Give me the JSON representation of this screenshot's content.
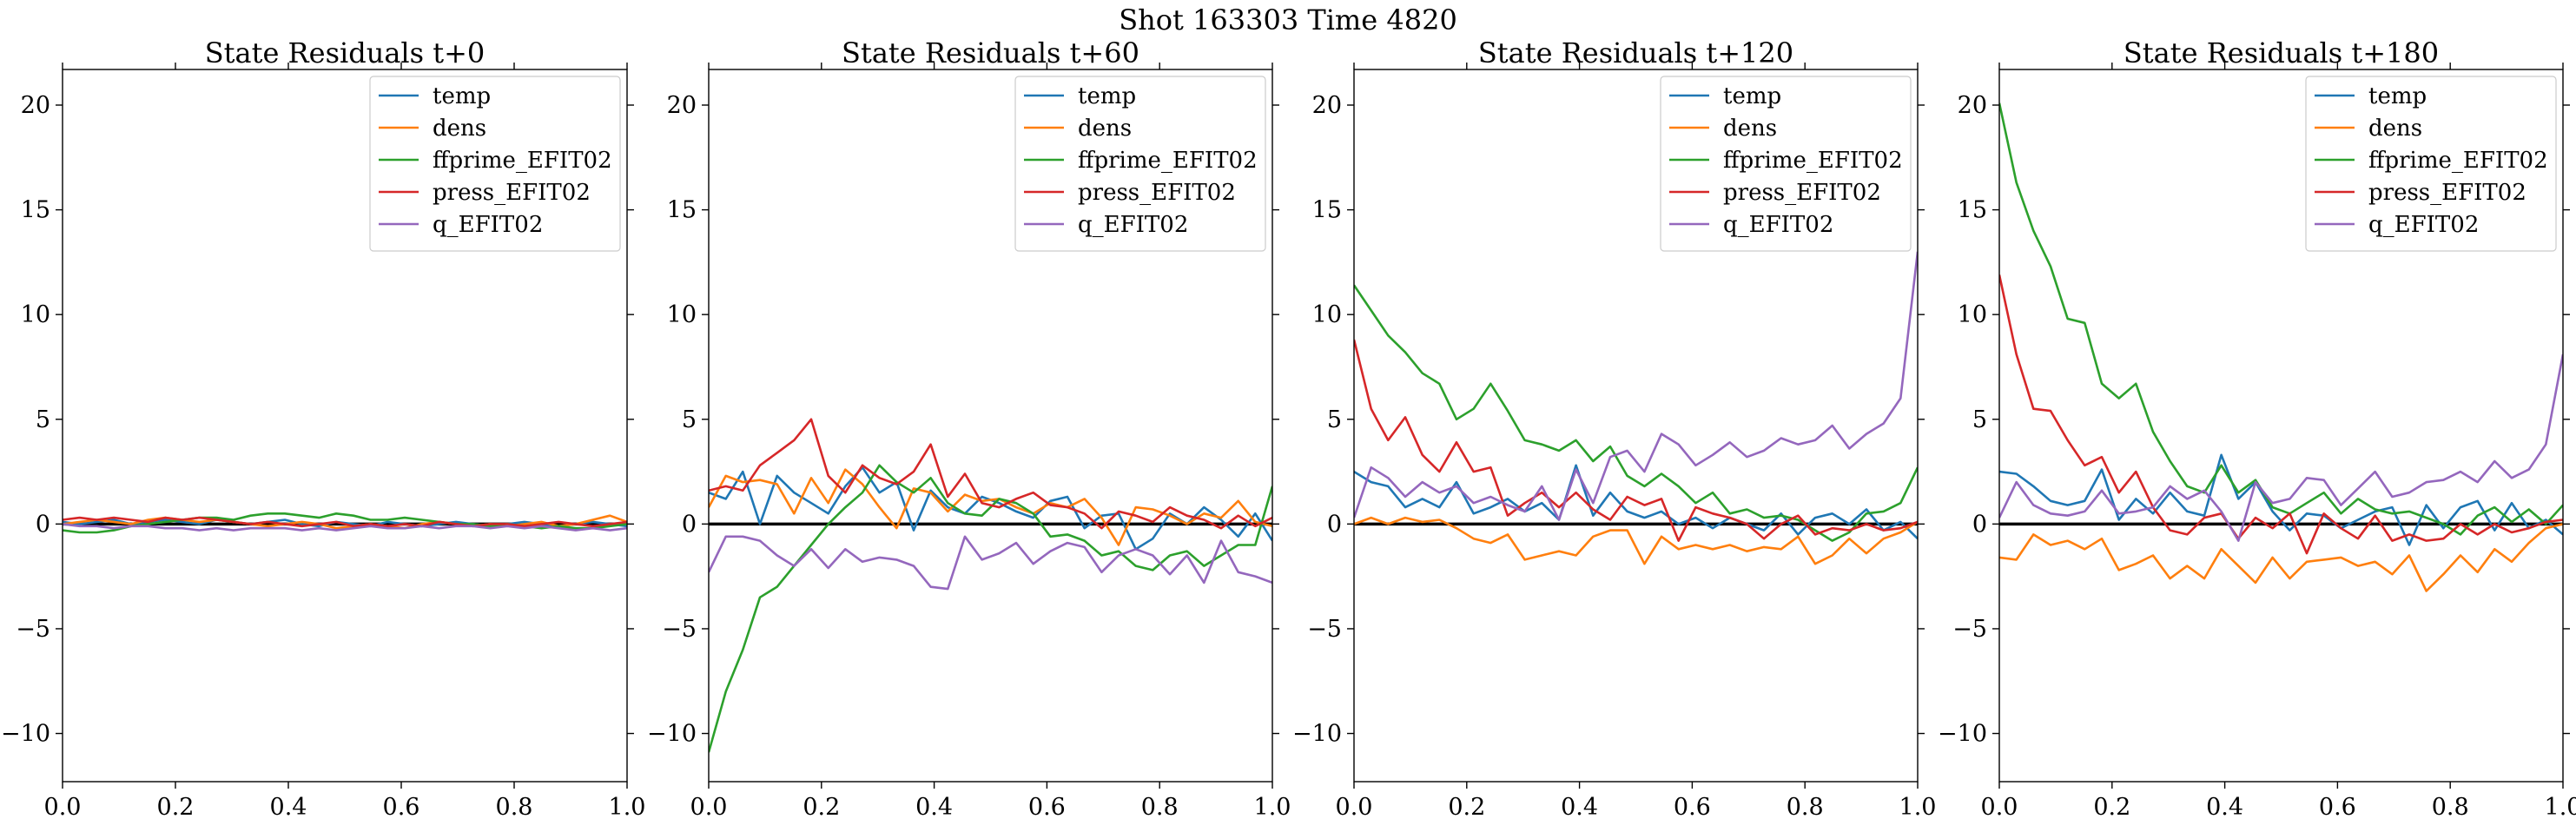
{
  "figure": {
    "suptitle": "Shot 163303   Time 4820"
  },
  "colors": {
    "temp": "#1f77b4",
    "dens": "#ff7f0e",
    "ffprime_EFIT02": "#2ca02c",
    "press_EFIT02": "#d62728",
    "q_EFIT02": "#9467bd",
    "zero_line": "#000000"
  },
  "chart_data": [
    {
      "type": "line",
      "title": "State Residuals t+0",
      "xlim": [
        0.0,
        1.0
      ],
      "ylim": [
        -12.3,
        21.7
      ],
      "xticks": [
        "0.0",
        "0.2",
        "0.4",
        "0.6",
        "0.8",
        "1.0"
      ],
      "yticks": [
        "−10",
        "−5",
        "0",
        "5",
        "10",
        "15",
        "20"
      ],
      "grid": false,
      "legend_position": "upper right",
      "x": [
        0.0,
        0.0303,
        0.0606,
        0.0909,
        0.1212,
        0.1515,
        0.1818,
        0.2121,
        0.2424,
        0.2727,
        0.303,
        0.3333,
        0.3636,
        0.3939,
        0.4242,
        0.4545,
        0.4848,
        0.5152,
        0.5455,
        0.5758,
        0.6061,
        0.6364,
        0.6667,
        0.697,
        0.7273,
        0.7576,
        0.7879,
        0.8182,
        0.8485,
        0.8788,
        0.9091,
        0.9394,
        0.9697,
        1.0
      ],
      "series": [
        {
          "name": "temp",
          "values": [
            0.1,
            0.0,
            0.1,
            0.2,
            0.0,
            0.1,
            0.2,
            0.1,
            0.0,
            0.2,
            0.1,
            0.0,
            0.1,
            0.2,
            0.0,
            -0.1,
            0.1,
            0.0,
            -0.1,
            0.1,
            0.0,
            -0.1,
            0.0,
            0.1,
            0.0,
            -0.1,
            0.0,
            0.1,
            0.0,
            -0.1,
            0.0,
            0.1,
            0.0,
            -0.1
          ]
        },
        {
          "name": "dens",
          "values": [
            0.0,
            0.1,
            0.2,
            0.1,
            0.0,
            0.2,
            0.3,
            0.2,
            0.1,
            0.2,
            0.1,
            0.0,
            -0.1,
            0.0,
            0.1,
            0.0,
            -0.2,
            -0.1,
            0.0,
            -0.1,
            -0.2,
            0.0,
            0.1,
            0.0,
            -0.1,
            0.0,
            -0.1,
            0.0,
            0.1,
            -0.1,
            0.0,
            0.2,
            0.4,
            0.1
          ]
        },
        {
          "name": "ffprime_EFIT02",
          "values": [
            -0.3,
            -0.4,
            -0.4,
            -0.3,
            -0.1,
            0.0,
            0.1,
            0.2,
            0.3,
            0.3,
            0.2,
            0.4,
            0.5,
            0.5,
            0.4,
            0.3,
            0.5,
            0.4,
            0.2,
            0.2,
            0.3,
            0.2,
            0.1,
            0.0,
            0.0,
            -0.1,
            0.0,
            -0.1,
            -0.2,
            -0.1,
            -0.2,
            -0.2,
            -0.1,
            0.0
          ]
        },
        {
          "name": "press_EFIT02",
          "values": [
            0.2,
            0.3,
            0.2,
            0.3,
            0.2,
            0.1,
            0.3,
            0.2,
            0.3,
            0.2,
            0.1,
            0.0,
            0.1,
            0.0,
            -0.1,
            0.0,
            0.1,
            -0.1,
            0.0,
            -0.1,
            0.0,
            -0.1,
            0.1,
            0.0,
            -0.1,
            0.0,
            0.0,
            -0.1,
            0.0,
            0.1,
            0.0,
            -0.1,
            0.0,
            0.1
          ]
        },
        {
          "name": "q_EFIT02",
          "values": [
            0.0,
            -0.1,
            -0.1,
            -0.2,
            -0.1,
            -0.1,
            -0.2,
            -0.2,
            -0.3,
            -0.2,
            -0.3,
            -0.2,
            -0.2,
            -0.2,
            -0.3,
            -0.2,
            -0.3,
            -0.2,
            -0.1,
            -0.2,
            -0.2,
            -0.1,
            -0.2,
            -0.1,
            -0.1,
            -0.2,
            -0.1,
            -0.2,
            -0.1,
            -0.2,
            -0.3,
            -0.2,
            -0.3,
            -0.2
          ]
        }
      ]
    },
    {
      "type": "line",
      "title": "State Residuals t+60",
      "xlim": [
        0.0,
        1.0
      ],
      "ylim": [
        -12.3,
        21.7
      ],
      "xticks": [
        "0.0",
        "0.2",
        "0.4",
        "0.6",
        "0.8",
        "1.0"
      ],
      "yticks": [
        "−10",
        "−5",
        "0",
        "5",
        "10",
        "15",
        "20"
      ],
      "grid": false,
      "legend_position": "upper right",
      "x": [
        0.0,
        0.0303,
        0.0606,
        0.0909,
        0.1212,
        0.1515,
        0.1818,
        0.2121,
        0.2424,
        0.2727,
        0.303,
        0.3333,
        0.3636,
        0.3939,
        0.4242,
        0.4545,
        0.4848,
        0.5152,
        0.5455,
        0.5758,
        0.6061,
        0.6364,
        0.6667,
        0.697,
        0.7273,
        0.7576,
        0.7879,
        0.8182,
        0.8485,
        0.8788,
        0.9091,
        0.9394,
        0.9697,
        1.0
      ],
      "series": [
        {
          "name": "temp",
          "values": [
            1.5,
            1.2,
            2.5,
            0.0,
            2.3,
            1.5,
            1.0,
            0.5,
            1.8,
            2.7,
            1.5,
            2.0,
            -0.3,
            1.6,
            0.8,
            0.5,
            1.3,
            1.0,
            0.6,
            0.3,
            1.1,
            1.3,
            -0.2,
            0.4,
            0.5,
            -1.2,
            -0.7,
            0.5,
            0.0,
            0.8,
            0.2,
            -0.6,
            0.5,
            -0.8
          ]
        },
        {
          "name": "dens",
          "values": [
            0.8,
            2.3,
            2.0,
            2.1,
            1.9,
            0.5,
            2.2,
            1.0,
            2.6,
            1.9,
            0.8,
            -0.2,
            1.7,
            1.5,
            0.6,
            1.4,
            1.1,
            1.2,
            0.8,
            0.5,
            1.0,
            0.8,
            1.2,
            0.3,
            -1.0,
            0.8,
            0.7,
            0.4,
            0.0,
            0.5,
            0.3,
            1.1,
            0.1,
            -0.1
          ]
        },
        {
          "name": "ffprime_EFIT02",
          "values": [
            -10.9,
            -8.0,
            -6.0,
            -3.5,
            -3.0,
            -2.0,
            -1.0,
            0.0,
            0.8,
            1.5,
            2.8,
            2.0,
            1.5,
            2.2,
            1.0,
            0.5,
            0.4,
            1.2,
            1.0,
            0.5,
            -0.6,
            -0.5,
            -0.8,
            -1.5,
            -1.3,
            -2.0,
            -2.2,
            -1.5,
            -1.3,
            -2.0,
            -1.5,
            -1.0,
            -1.0,
            1.8
          ]
        },
        {
          "name": "press_EFIT02",
          "values": [
            1.6,
            1.8,
            1.6,
            2.8,
            3.4,
            4.0,
            5.0,
            2.3,
            1.5,
            2.8,
            2.2,
            1.9,
            2.5,
            3.8,
            1.3,
            2.4,
            1.0,
            0.8,
            1.2,
            1.5,
            0.9,
            0.8,
            0.5,
            -0.2,
            0.6,
            0.4,
            0.1,
            0.8,
            0.4,
            0.2,
            -0.2,
            0.4,
            -0.1,
            0.3
          ]
        },
        {
          "name": "q_EFIT02",
          "values": [
            -2.3,
            -0.6,
            -0.6,
            -0.8,
            -1.5,
            -2.0,
            -1.2,
            -2.1,
            -1.2,
            -1.8,
            -1.6,
            -1.7,
            -2.0,
            -3.0,
            -3.1,
            -0.6,
            -1.7,
            -1.4,
            -0.9,
            -1.9,
            -1.3,
            -0.9,
            -1.1,
            -2.3,
            -1.5,
            -1.2,
            -1.5,
            -2.4,
            -1.5,
            -2.8,
            -0.8,
            -2.3,
            -2.5,
            -2.8
          ]
        }
      ]
    },
    {
      "type": "line",
      "title": "State Residuals t+120",
      "xlim": [
        0.0,
        1.0
      ],
      "ylim": [
        -12.3,
        21.7
      ],
      "xticks": [
        "0.0",
        "0.2",
        "0.4",
        "0.6",
        "0.8",
        "1.0"
      ],
      "yticks": [
        "−10",
        "−5",
        "0",
        "5",
        "10",
        "15",
        "20"
      ],
      "grid": false,
      "legend_position": "upper right",
      "x": [
        0.0,
        0.0303,
        0.0606,
        0.0909,
        0.1212,
        0.1515,
        0.1818,
        0.2121,
        0.2424,
        0.2727,
        0.303,
        0.3333,
        0.3636,
        0.3939,
        0.4242,
        0.4545,
        0.4848,
        0.5152,
        0.5455,
        0.5758,
        0.6061,
        0.6364,
        0.6667,
        0.697,
        0.7273,
        0.7576,
        0.7879,
        0.8182,
        0.8485,
        0.8788,
        0.9091,
        0.9394,
        0.9697,
        1.0
      ],
      "series": [
        {
          "name": "temp",
          "values": [
            2.5,
            2.0,
            1.8,
            0.8,
            1.2,
            0.8,
            2.0,
            0.5,
            0.8,
            1.2,
            0.6,
            1.0,
            0.2,
            2.8,
            0.4,
            1.5,
            0.6,
            0.3,
            0.6,
            0.0,
            0.3,
            -0.2,
            0.3,
            0.0,
            -0.3,
            0.5,
            -0.5,
            0.3,
            0.5,
            0.0,
            0.7,
            -0.3,
            0.1,
            -0.7
          ]
        },
        {
          "name": "dens",
          "values": [
            0.0,
            0.3,
            0.0,
            0.3,
            0.1,
            0.2,
            -0.2,
            -0.7,
            -0.9,
            -0.5,
            -1.7,
            -1.5,
            -1.3,
            -1.5,
            -0.6,
            -0.3,
            -0.3,
            -1.9,
            -0.6,
            -1.2,
            -1.0,
            -1.2,
            -1.0,
            -1.3,
            -1.1,
            -1.2,
            -0.6,
            -1.9,
            -1.5,
            -0.7,
            -1.4,
            -0.7,
            -0.4,
            0.1
          ]
        },
        {
          "name": "ffprime_EFIT02",
          "values": [
            11.4,
            10.2,
            9.0,
            8.2,
            7.2,
            6.7,
            5.0,
            5.5,
            6.7,
            5.4,
            4.0,
            3.8,
            3.5,
            4.0,
            3.0,
            3.7,
            2.3,
            1.8,
            2.4,
            1.8,
            1.0,
            1.5,
            0.5,
            0.7,
            0.3,
            0.4,
            0.2,
            -0.3,
            -0.8,
            -0.4,
            0.5,
            0.6,
            1.0,
            2.7
          ]
        },
        {
          "name": "press_EFIT02",
          "values": [
            8.8,
            5.5,
            4.0,
            5.1,
            3.3,
            2.5,
            3.9,
            2.5,
            2.7,
            0.4,
            1.0,
            1.5,
            0.8,
            1.5,
            0.7,
            0.2,
            1.3,
            0.9,
            1.2,
            -0.8,
            0.8,
            0.5,
            0.3,
            0.0,
            -0.7,
            0.0,
            0.4,
            -0.5,
            -0.2,
            -0.3,
            0.0,
            -0.3,
            -0.2,
            0.1
          ]
        },
        {
          "name": "q_EFIT02",
          "values": [
            0.3,
            2.7,
            2.2,
            1.3,
            2.0,
            1.5,
            1.8,
            1.0,
            1.3,
            0.9,
            0.6,
            1.8,
            0.2,
            2.6,
            1.0,
            3.2,
            3.5,
            2.5,
            4.3,
            3.8,
            2.8,
            3.3,
            3.9,
            3.2,
            3.5,
            4.1,
            3.8,
            4.0,
            4.7,
            3.6,
            4.3,
            4.8,
            6.0,
            13.0
          ]
        }
      ]
    },
    {
      "type": "line",
      "title": "State Residuals t+180",
      "xlim": [
        0.0,
        1.0
      ],
      "ylim": [
        -12.3,
        21.7
      ],
      "xticks": [
        "0.0",
        "0.2",
        "0.4",
        "0.6",
        "0.8",
        "1.0"
      ],
      "yticks": [
        "−10",
        "−5",
        "0",
        "5",
        "10",
        "15",
        "20"
      ],
      "grid": false,
      "legend_position": "upper right",
      "x": [
        0.0,
        0.0303,
        0.0606,
        0.0909,
        0.1212,
        0.1515,
        0.1818,
        0.2121,
        0.2424,
        0.2727,
        0.303,
        0.3333,
        0.3636,
        0.3939,
        0.4242,
        0.4545,
        0.4848,
        0.5152,
        0.5455,
        0.5758,
        0.6061,
        0.6364,
        0.6667,
        0.697,
        0.7273,
        0.7576,
        0.7879,
        0.8182,
        0.8485,
        0.8788,
        0.9091,
        0.9394,
        0.9697,
        1.0
      ],
      "series": [
        {
          "name": "temp",
          "values": [
            2.5,
            2.4,
            1.8,
            1.1,
            0.9,
            1.1,
            2.6,
            0.2,
            1.2,
            0.5,
            1.5,
            0.6,
            0.4,
            3.3,
            1.2,
            2.0,
            0.6,
            -0.3,
            0.5,
            0.4,
            -0.2,
            0.2,
            0.6,
            0.8,
            -1.0,
            0.9,
            -0.2,
            0.8,
            1.1,
            -0.3,
            1.0,
            -0.2,
            0.2,
            -0.5
          ]
        },
        {
          "name": "dens",
          "values": [
            -1.6,
            -1.7,
            -0.5,
            -1.0,
            -0.8,
            -1.2,
            -0.7,
            -2.2,
            -1.9,
            -1.5,
            -2.6,
            -2.0,
            -2.6,
            -1.2,
            -2.0,
            -2.8,
            -1.6,
            -2.6,
            -1.8,
            -1.7,
            -1.6,
            -2.0,
            -1.8,
            -2.4,
            -1.5,
            -3.2,
            -2.4,
            -1.5,
            -2.3,
            -1.2,
            -1.8,
            -0.9,
            -0.2,
            0.0
          ]
        },
        {
          "name": "ffprime_EFIT02",
          "values": [
            20.1,
            16.3,
            14.0,
            12.3,
            9.8,
            9.6,
            6.7,
            6.0,
            6.7,
            4.4,
            3.0,
            1.8,
            1.5,
            2.8,
            1.5,
            2.1,
            0.8,
            0.5,
            1.0,
            1.5,
            0.5,
            1.2,
            0.7,
            0.5,
            0.6,
            0.3,
            0.0,
            -0.5,
            0.4,
            0.8,
            0.1,
            0.7,
            0.0,
            0.9
          ]
        },
        {
          "name": "press_EFIT02",
          "values": [
            11.9,
            8.1,
            5.5,
            5.4,
            4.0,
            2.8,
            3.2,
            1.5,
            2.5,
            0.8,
            -0.3,
            -0.5,
            0.3,
            0.5,
            -0.7,
            0.3,
            -0.2,
            0.5,
            -1.4,
            0.5,
            -0.2,
            -0.7,
            0.4,
            -0.8,
            -0.5,
            -0.8,
            -0.7,
            0.0,
            -0.5,
            0.0,
            -0.4,
            -0.2,
            0.1,
            0.2
          ]
        },
        {
          "name": "q_EFIT02",
          "values": [
            0.3,
            2.0,
            0.9,
            0.5,
            0.4,
            0.6,
            1.6,
            0.5,
            0.6,
            0.8,
            1.8,
            1.2,
            1.6,
            0.6,
            -0.8,
            2.0,
            1.0,
            1.2,
            2.2,
            2.1,
            0.9,
            1.7,
            2.5,
            1.3,
            1.5,
            2.0,
            2.1,
            2.5,
            2.0,
            3.0,
            2.2,
            2.6,
            3.8,
            8.1
          ]
        }
      ]
    }
  ]
}
